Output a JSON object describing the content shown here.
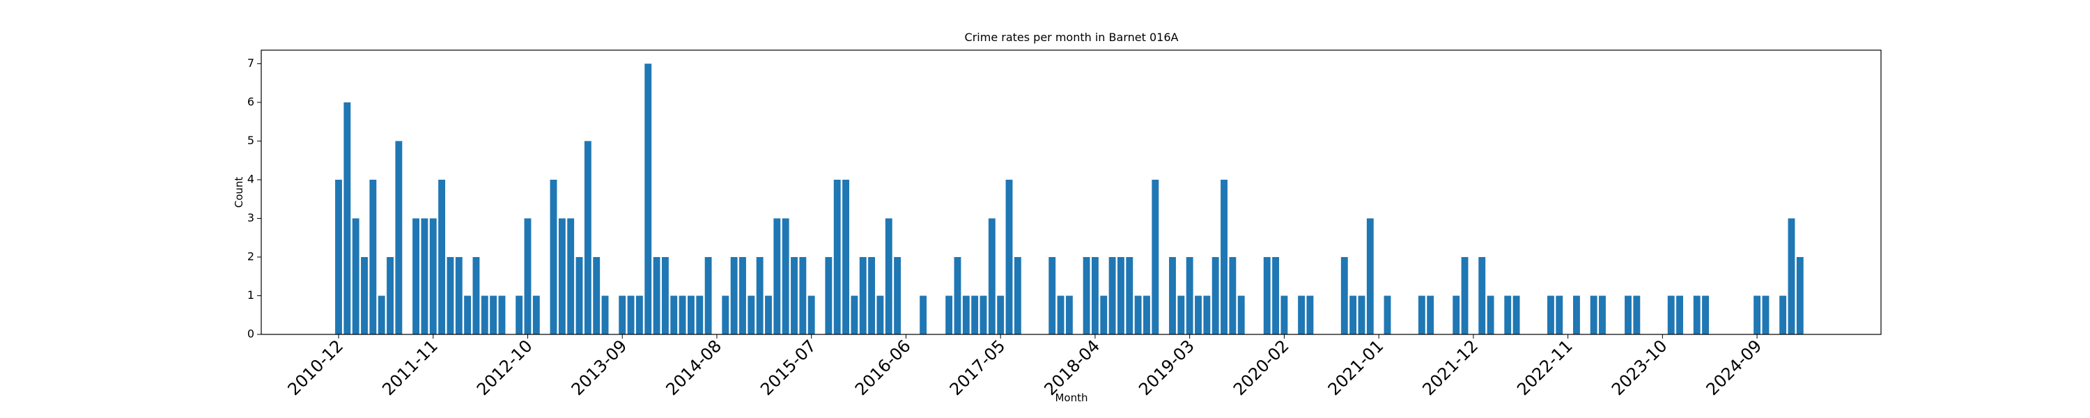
{
  "chart_data": {
    "type": "bar",
    "title": "Crime rates per month in Barnet 016A",
    "x_label": "Month",
    "y_label": "Count",
    "color": "#1f77b4",
    "categories": [
      "2010-12",
      null,
      null,
      null,
      null,
      null,
      null,
      null,
      null,
      null,
      null,
      "2011-11",
      null,
      null,
      null,
      null,
      null,
      null,
      null,
      null,
      null,
      null,
      "2012-10",
      null,
      null,
      null,
      null,
      null,
      null,
      null,
      null,
      null,
      null,
      "2013-09",
      null,
      null,
      null,
      null,
      null,
      null,
      null,
      null,
      null,
      null,
      "2014-08",
      null,
      null,
      null,
      null,
      null,
      null,
      null,
      null,
      null,
      null,
      "2015-07",
      null,
      null,
      null,
      null,
      null,
      null,
      null,
      null,
      null,
      null,
      "2016-06",
      null,
      null,
      null,
      null,
      null,
      null,
      null,
      null,
      null,
      null,
      "2017-05",
      null,
      null,
      null,
      null,
      null,
      null,
      null,
      null,
      null,
      null,
      "2018-04",
      null,
      null,
      null,
      null,
      null,
      null,
      null,
      null,
      null,
      null,
      "2019-03",
      null,
      null,
      null,
      null,
      null,
      null,
      null,
      null,
      null,
      null,
      "2020-02",
      null,
      null,
      null,
      null,
      null,
      null,
      null,
      null,
      null,
      null,
      "2021-01",
      null,
      null,
      null,
      null,
      null,
      null,
      null,
      null,
      null,
      null,
      "2021-12",
      null,
      null,
      null,
      null,
      null,
      null,
      null,
      null,
      null,
      null,
      "2022-11",
      null,
      null,
      null,
      null,
      null,
      null,
      null,
      null,
      null,
      null,
      "2023-10",
      null,
      null,
      null,
      null,
      null,
      null,
      null,
      null,
      null,
      null,
      "2024-09",
      null,
      null,
      null,
      null,
      null
    ],
    "values": [
      4,
      6,
      3,
      2,
      4,
      1,
      2,
      5,
      0,
      3,
      3,
      3,
      4,
      2,
      2,
      1,
      2,
      1,
      1,
      1,
      0,
      1,
      3,
      1,
      0,
      4,
      3,
      3,
      2,
      5,
      2,
      1,
      0,
      1,
      1,
      1,
      7,
      2,
      2,
      1,
      1,
      1,
      1,
      2,
      0,
      1,
      2,
      2,
      1,
      2,
      1,
      3,
      3,
      2,
      2,
      1,
      0,
      2,
      4,
      4,
      1,
      2,
      2,
      1,
      3,
      2,
      0,
      0,
      1,
      0,
      0,
      1,
      2,
      1,
      1,
      1,
      3,
      1,
      4,
      2,
      0,
      0,
      0,
      2,
      1,
      1,
      0,
      2,
      2,
      1,
      2,
      2,
      2,
      1,
      1,
      4,
      0,
      2,
      1,
      2,
      1,
      1,
      2,
      4,
      2,
      1,
      0,
      0,
      2,
      2,
      1,
      0,
      1,
      1,
      0,
      0,
      0,
      2,
      1,
      1,
      3,
      0,
      1,
      0,
      0,
      0,
      1,
      1,
      0,
      0,
      1,
      2,
      0,
      2,
      1,
      0,
      1,
      1,
      0,
      0,
      0,
      1,
      1,
      0,
      1,
      0,
      1,
      1,
      0,
      0,
      1,
      1,
      0,
      0,
      0,
      1,
      1,
      0,
      1,
      1,
      0,
      0,
      0,
      0,
      0,
      1,
      1,
      0,
      1,
      3,
      2
    ],
    "ylim": [
      0,
      7.35
    ],
    "yticks": [
      0,
      1,
      2,
      3,
      4,
      5,
      6,
      7
    ]
  }
}
